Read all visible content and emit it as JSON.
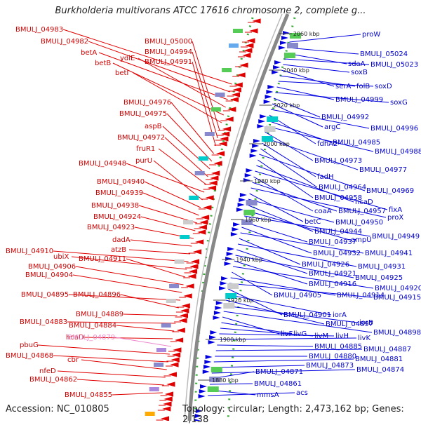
{
  "title": "Burkholderia multivorans ATCC 17616 chromosome 2, complete g...",
  "footer": {
    "accession": "Accession: NC_010805",
    "topology": "Topology: circular; Length: 2,473,162 bp; Genes: 2,138"
  },
  "colors": {
    "forward": "#e00000",
    "reverse": "#0000e0",
    "backbone": "#888888",
    "dots": "#33aa33",
    "left_label": "#cc0000",
    "right_label": "#0000cc",
    "pink_label": "#ee88cc"
  },
  "kbp_markers": [
    "2060 kbp",
    "2040 kbp",
    "2020 kbp",
    "2000 kbp",
    "1980 kbp",
    "1960 kbp",
    "1940 kbp",
    "1920 kbp",
    "1900 kbp",
    "1880 kbp"
  ],
  "left_labels": [
    "BMULJ_04983",
    "BMULJ_04982",
    "betA",
    "ydiE",
    "betB",
    "betI",
    "BMULJ_05000",
    "BMULJ_04994",
    "BMULJ_04991",
    "BMULJ_04976",
    "BMULJ_04975",
    "aspB",
    "BMULJ_04972",
    "fruR1",
    "BMULJ_04948",
    "purU",
    "BMULJ_04940",
    "BMULJ_04939",
    "BMULJ_04938",
    "BMULJ_04924",
    "BMULJ_04923",
    "dadA",
    "atzB",
    "BMULJ_04910",
    "ubiX",
    "BMULJ_04911",
    "BMULJ_04906",
    "BMULJ_04904",
    "BMULJ_04895",
    "BMULJ_04896",
    "BMULJ_04889",
    "BMULJ_04883",
    "BMULJ_04884",
    "hcaD",
    "BMULJ_04879",
    "pbuG",
    "BMULJ_04868",
    "cbr",
    "nfeD",
    "BMULJ_04862",
    "BMULJ_04855"
  ],
  "right_labels": [
    "proW",
    "BMULJ_05024",
    "sdaA",
    "BMULJ_05023",
    "soxB",
    "serA",
    "folB",
    "soxD",
    "BMULJ_04999",
    "soxG",
    "BMULJ_04992",
    "argC",
    "BMULJ_04996",
    "fdhA2",
    "BMULJ_04985",
    "BMULJ_04988",
    "BMULJ_04973",
    "BMULJ_04977",
    "fadH",
    "BMULJ_04964",
    "BMULJ_04969",
    "BMULJ_04958",
    "hcaD",
    "fixA",
    "coaA",
    "BMULJ_04957",
    "proX",
    "betC",
    "BMULJ_04950",
    "BMULJ_04944",
    "ompU",
    "BMULJ_04949",
    "BMULJ_04937",
    "BMULJ_04932",
    "BMULJ_04941",
    "BMULJ_04926",
    "BMULJ_04931",
    "BMULJ_04921",
    "BMULJ_04925",
    "BMULJ_04916",
    "BMULJ_04920",
    "BMULJ_04905",
    "BMULJ_04914",
    "BMULJ_04915",
    "BMULJ_04901",
    "iorA",
    "BMULJ_04897",
    "iorB",
    "BMULJ_04898",
    "livF",
    "livG",
    "livM",
    "livH",
    "livK",
    "BMULJ_04885",
    "BMULJ_04887",
    "BMULJ_04880",
    "BMULJ_04881",
    "BMULJ_04873",
    "BMULJ_04874",
    "BMULJ_04871",
    "BMULJ_04861",
    "mmsA",
    "acs"
  ]
}
